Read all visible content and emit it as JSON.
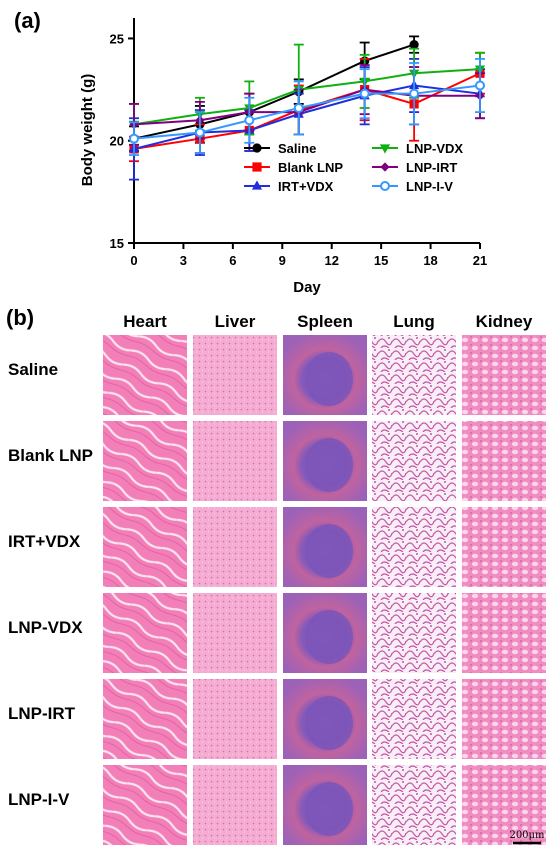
{
  "panel_a_label": "(a)",
  "panel_b_label": "(b)",
  "chart_data": {
    "type": "line",
    "xlabel": "Day",
    "ylabel": "Body weight (g)",
    "xlim": [
      0,
      21
    ],
    "ylim": [
      15,
      26
    ],
    "xticks": [
      0,
      3,
      6,
      9,
      12,
      15,
      18,
      21
    ],
    "yticks": [
      15,
      20,
      25
    ],
    "grid": false,
    "legend_position": "bottom-right",
    "series": [
      {
        "name": "Saline",
        "color": "#000000",
        "marker": "circle",
        "x": [
          0,
          4,
          7,
          10,
          14,
          17
        ],
        "y": [
          20.1,
          20.8,
          21.4,
          22.4,
          23.9,
          24.7
        ],
        "err": [
          0.6,
          0.9,
          0.9,
          0.6,
          0.9,
          0.4
        ]
      },
      {
        "name": "Blank LNP",
        "color": "#ff0000",
        "marker": "square",
        "x": [
          0,
          4,
          7,
          10,
          14,
          17,
          21
        ],
        "y": [
          19.6,
          20.1,
          20.5,
          21.5,
          22.5,
          21.8,
          23.3
        ],
        "err": [
          0.6,
          0.7,
          1.0,
          1.2,
          1.5,
          1.8,
          1.0
        ]
      },
      {
        "name": "IRT+VDX",
        "color": "#1f2fe0",
        "marker": "triangle",
        "x": [
          0,
          4,
          7,
          10,
          14,
          17,
          21
        ],
        "y": [
          19.6,
          20.4,
          20.5,
          21.3,
          22.2,
          22.7,
          22.3
        ],
        "err": [
          1.5,
          1.1,
          1.0,
          1.0,
          1.4,
          1.3,
          1.2
        ]
      },
      {
        "name": "LNP-VDX",
        "color": "#10b010",
        "marker": "triangle-down",
        "x": [
          0,
          4,
          7,
          10,
          14,
          17,
          21
        ],
        "y": [
          20.8,
          21.3,
          21.6,
          22.5,
          22.9,
          23.3,
          23.5
        ],
        "err": [
          1.0,
          0.8,
          1.3,
          2.2,
          1.3,
          1.2,
          0.8
        ]
      },
      {
        "name": "LNP-IRT",
        "color": "#800080",
        "marker": "diamond",
        "x": [
          0,
          4,
          7,
          10,
          14,
          17,
          21
        ],
        "y": [
          20.8,
          21.0,
          21.4,
          21.4,
          22.5,
          22.2,
          22.2
        ],
        "err": [
          1.0,
          0.9,
          0.9,
          1.1,
          1.2,
          1.4,
          1.1
        ]
      },
      {
        "name": "LNP-I-V",
        "color": "#3399ff",
        "marker": "circle-open",
        "x": [
          0,
          4,
          7,
          10,
          14,
          17,
          21
        ],
        "y": [
          20.1,
          20.4,
          21.0,
          21.6,
          22.3,
          22.3,
          22.7
        ],
        "err": [
          0.8,
          1.0,
          1.1,
          1.3,
          1.2,
          1.5,
          1.3
        ]
      }
    ]
  },
  "histology": {
    "columns": [
      "Heart",
      "Liver",
      "Spleen",
      "Lung",
      "Kidney"
    ],
    "rows": [
      "Saline",
      "Blank LNP",
      "IRT+VDX",
      "LNP-VDX",
      "LNP-IRT",
      "LNP-I-V"
    ],
    "scale_bar": "200μm",
    "tissue_colors": {
      "Heart": "#f27fb8",
      "Liver": "#f3a0cd",
      "Spleen": "#9a67c2",
      "Lung": "#f3e6f1",
      "Kidney": "#f08cc2"
    }
  }
}
